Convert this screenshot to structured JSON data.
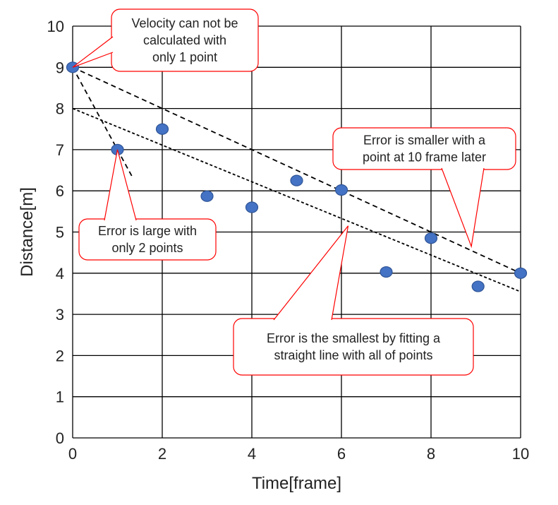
{
  "chart_data": {
    "type": "scatter",
    "xlabel": "Time[frame]",
    "ylabel": "Distance[m]",
    "xlim": [
      0,
      10
    ],
    "ylim": [
      0,
      10
    ],
    "xticks": [
      0,
      2,
      4,
      6,
      8,
      10
    ],
    "yticks": [
      0,
      1,
      2,
      3,
      4,
      5,
      6,
      7,
      8,
      9,
      10
    ],
    "grid": true,
    "legend": "none",
    "marker_color": "#4472C4",
    "marker_edge_color": "#2F5597",
    "points": [
      {
        "x": 0,
        "y": 9.0
      },
      {
        "x": 1,
        "y": 7.0
      },
      {
        "x": 2,
        "y": 7.5
      },
      {
        "x": 3,
        "y": 5.87
      },
      {
        "x": 4,
        "y": 5.6
      },
      {
        "x": 5,
        "y": 6.25
      },
      {
        "x": 6,
        "y": 6.02
      },
      {
        "x": 7,
        "y": 4.03
      },
      {
        "x": 8,
        "y": 4.85
      },
      {
        "x": 9.05,
        "y": 3.68
      },
      {
        "x": 10,
        "y": 4.0
      }
    ],
    "lines": [
      {
        "style": "dashed",
        "from": {
          "x": 0,
          "y": 9.0
        },
        "to": {
          "x": 1.35,
          "y": 6.3
        }
      },
      {
        "style": "dashed",
        "from": {
          "x": 0,
          "y": 9.0
        },
        "to": {
          "x": 10,
          "y": 4.0
        }
      },
      {
        "style": "dotted",
        "from": {
          "x": 0,
          "y": 8.0
        },
        "to": {
          "x": 10,
          "y": 3.55
        }
      }
    ],
    "annotations": [
      {
        "id": "one-point",
        "lines": [
          "Velocity can not be",
          "calculated with",
          "only 1 point"
        ],
        "target": {
          "x": 0,
          "y": 9.0
        }
      },
      {
        "id": "two-points",
        "lines": [
          "Error is large with",
          "only 2 points"
        ],
        "target": {
          "x": 1,
          "y": 7.0
        }
      },
      {
        "id": "ten-frames",
        "lines": [
          "Error is smaller with a",
          "point at 10 frame later"
        ],
        "target": {
          "x": 8.9,
          "y": 4.65
        }
      },
      {
        "id": "all-points",
        "lines": [
          "Error is the smallest by fitting a",
          "straight line with all of points"
        ],
        "target": {
          "x": 6.15,
          "y": 5.15
        }
      }
    ]
  }
}
